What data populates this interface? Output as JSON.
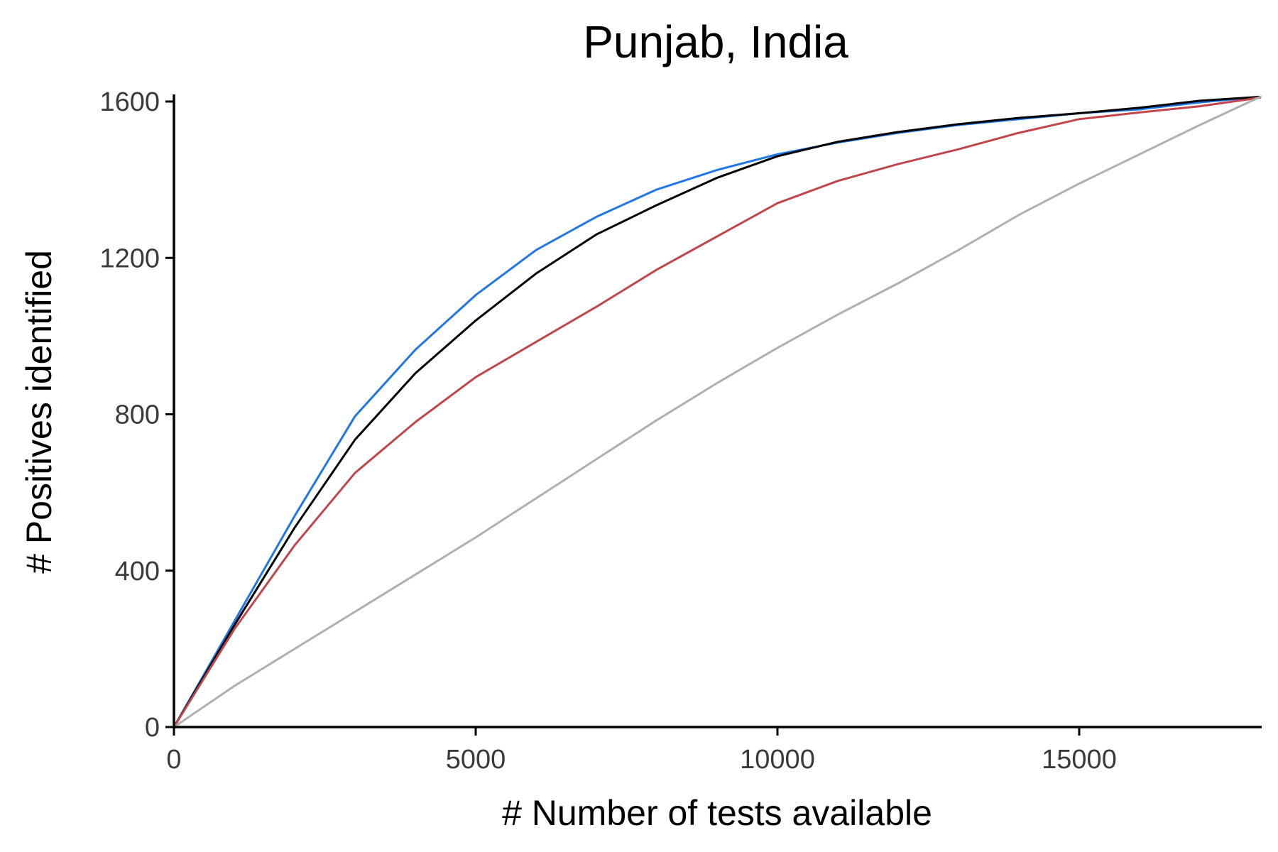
{
  "chart_data": {
    "type": "line",
    "title": "Punjab, India",
    "xlabel": "# Number of tests available",
    "ylabel": "# Positives identified",
    "xlim": [
      0,
      18000
    ],
    "ylim": [
      0,
      1610
    ],
    "xticks": [
      0,
      5000,
      10000,
      15000
    ],
    "yticks": [
      0,
      400,
      800,
      1200,
      1600
    ],
    "grid": false,
    "legend": "none",
    "x": [
      0,
      1000,
      2000,
      3000,
      4000,
      5000,
      6000,
      7000,
      8000,
      9000,
      10000,
      11000,
      12000,
      13000,
      14000,
      15000,
      16000,
      17000,
      18000
    ],
    "series": [
      {
        "color": "#1f77e8",
        "values": [
          0,
          270,
          540,
          795,
          965,
          1105,
          1220,
          1305,
          1375,
          1425,
          1465,
          1495,
          1520,
          1540,
          1555,
          1570,
          1580,
          1598,
          1612
        ]
      },
      {
        "color": "#000000",
        "values": [
          0,
          260,
          510,
          735,
          905,
          1040,
          1160,
          1260,
          1335,
          1405,
          1460,
          1497,
          1522,
          1542,
          1558,
          1570,
          1584,
          1602,
          1612
        ]
      },
      {
        "color": "#c0464c",
        "values": [
          0,
          250,
          465,
          650,
          780,
          895,
          985,
          1075,
          1170,
          1255,
          1340,
          1397,
          1440,
          1478,
          1520,
          1555,
          1572,
          1588,
          1610
        ]
      },
      {
        "color": "#b0b0b0",
        "values": [
          0,
          105,
          200,
          295,
          390,
          485,
          585,
          685,
          785,
          880,
          970,
          1055,
          1135,
          1220,
          1310,
          1390,
          1465,
          1540,
          1612
        ]
      }
    ]
  }
}
